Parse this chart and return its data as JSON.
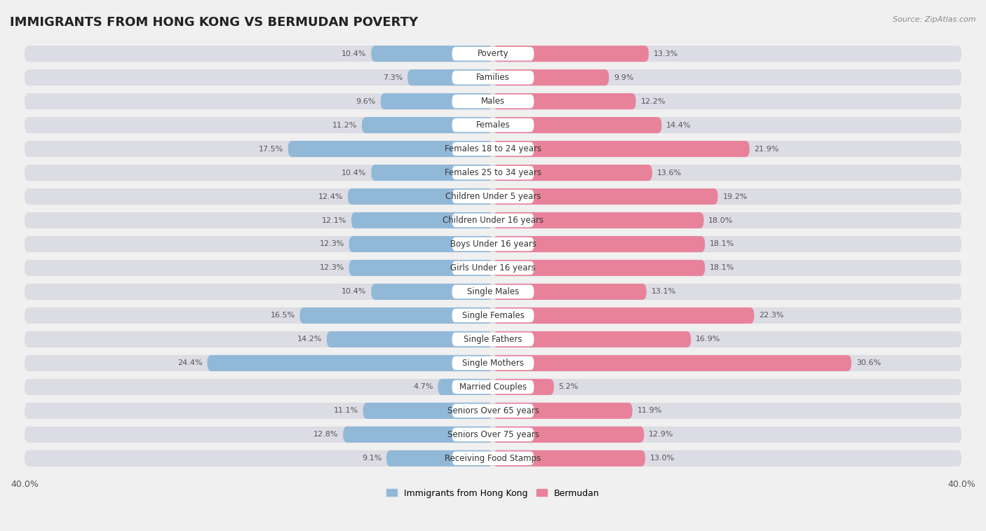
{
  "title": "IMMIGRANTS FROM HONG KONG VS BERMUDAN POVERTY",
  "source": "Source: ZipAtlas.com",
  "categories": [
    "Poverty",
    "Families",
    "Males",
    "Females",
    "Females 18 to 24 years",
    "Females 25 to 34 years",
    "Children Under 5 years",
    "Children Under 16 years",
    "Boys Under 16 years",
    "Girls Under 16 years",
    "Single Males",
    "Single Females",
    "Single Fathers",
    "Single Mothers",
    "Married Couples",
    "Seniors Over 65 years",
    "Seniors Over 75 years",
    "Receiving Food Stamps"
  ],
  "left_values": [
    10.4,
    7.3,
    9.6,
    11.2,
    17.5,
    10.4,
    12.4,
    12.1,
    12.3,
    12.3,
    10.4,
    16.5,
    14.2,
    24.4,
    4.7,
    11.1,
    12.8,
    9.1
  ],
  "right_values": [
    13.3,
    9.9,
    12.2,
    14.4,
    21.9,
    13.6,
    19.2,
    18.0,
    18.1,
    18.1,
    13.1,
    22.3,
    16.9,
    30.6,
    5.2,
    11.9,
    12.9,
    13.0
  ],
  "left_color": "#92b8d8",
  "right_color": "#e8829a",
  "left_label": "Immigrants from Hong Kong",
  "right_label": "Bermudan",
  "axis_limit": 40.0,
  "background_color": "#f0f0f0",
  "row_bg_color": "#e0e0e6",
  "bar_inner_bg": "#f8f8f8",
  "title_fontsize": 13,
  "label_fontsize": 8.5,
  "value_fontsize": 8.0
}
